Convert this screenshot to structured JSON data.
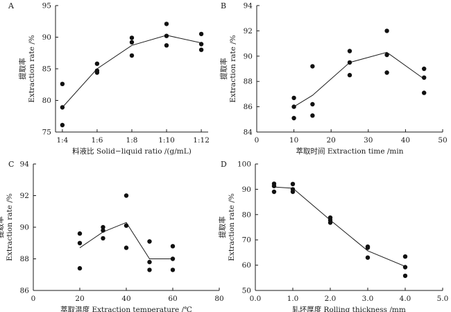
{
  "chart_data": [
    {
      "panel": "A",
      "type": "scatter",
      "xlabel": "料液比 Solid−liquid ratio /(g/mL)",
      "ylabel_cn": "提取率",
      "ylabel_en": "Extraction rate /%",
      "x_categories": [
        "1:4",
        "1:6",
        "1:8",
        "1:10",
        "1:12"
      ],
      "x_is_categorical": true,
      "ylim": [
        75,
        95
      ],
      "yticks": [
        75,
        80,
        85,
        90,
        95
      ],
      "points": [
        {
          "x": "1:4",
          "y": 82.6
        },
        {
          "x": "1:4",
          "y": 78.9
        },
        {
          "x": "1:4",
          "y": 76.1
        },
        {
          "x": "1:6",
          "y": 85.8
        },
        {
          "x": "1:6",
          "y": 84.7
        },
        {
          "x": "1:6",
          "y": 84.4
        },
        {
          "x": "1:8",
          "y": 89.9
        },
        {
          "x": "1:8",
          "y": 89.2
        },
        {
          "x": "1:8",
          "y": 87.1
        },
        {
          "x": "1:10",
          "y": 92.1
        },
        {
          "x": "1:10",
          "y": 90.2
        },
        {
          "x": "1:10",
          "y": 88.7
        },
        {
          "x": "1:12",
          "y": 90.5
        },
        {
          "x": "1:12",
          "y": 88.9
        },
        {
          "x": "1:12",
          "y": 88.0
        }
      ],
      "mean_line": [
        {
          "x": "1:4",
          "y": 78.9
        },
        {
          "x": "1:6",
          "y": 85.0
        },
        {
          "x": "1:8",
          "y": 88.7
        },
        {
          "x": "1:10",
          "y": 90.3
        },
        {
          "x": "1:12",
          "y": 89.1
        }
      ]
    },
    {
      "panel": "B",
      "type": "scatter",
      "xlabel": "萃取时间 Extraction time /min",
      "ylabel_cn": "提取率",
      "ylabel_en": "Extraction rate /%",
      "xlim": [
        0,
        50
      ],
      "xticks": [
        0,
        10,
        20,
        30,
        40,
        50
      ],
      "ylim": [
        84,
        94
      ],
      "yticks": [
        84,
        86,
        88,
        90,
        92,
        94
      ],
      "points": [
        {
          "x": 10,
          "y": 86.7
        },
        {
          "x": 10,
          "y": 86.0
        },
        {
          "x": 10,
          "y": 85.1
        },
        {
          "x": 15,
          "y": 89.2
        },
        {
          "x": 15,
          "y": 86.2
        },
        {
          "x": 15,
          "y": 85.3
        },
        {
          "x": 25,
          "y": 90.4
        },
        {
          "x": 25,
          "y": 89.5
        },
        {
          "x": 25,
          "y": 88.5
        },
        {
          "x": 35,
          "y": 92.0
        },
        {
          "x": 35,
          "y": 90.1
        },
        {
          "x": 35,
          "y": 88.7
        },
        {
          "x": 45,
          "y": 89.0
        },
        {
          "x": 45,
          "y": 88.3
        },
        {
          "x": 45,
          "y": 87.1
        }
      ],
      "mean_line": [
        {
          "x": 10,
          "y": 86.0
        },
        {
          "x": 15,
          "y": 86.9
        },
        {
          "x": 25,
          "y": 89.5
        },
        {
          "x": 35,
          "y": 90.3
        },
        {
          "x": 45,
          "y": 88.2
        }
      ]
    },
    {
      "panel": "C",
      "type": "scatter",
      "xlabel": "萃取温度 Extraction temperature /℃",
      "ylabel_cn": "提取率",
      "ylabel_en": "Extraction rate /%",
      "xlim": [
        0,
        80
      ],
      "xticks": [
        0,
        20,
        40,
        60,
        80
      ],
      "ylim": [
        86,
        94
      ],
      "yticks": [
        86,
        88,
        90,
        92,
        94
      ],
      "points": [
        {
          "x": 20,
          "y": 89.6
        },
        {
          "x": 20,
          "y": 89.0
        },
        {
          "x": 20,
          "y": 87.4
        },
        {
          "x": 30,
          "y": 90.0
        },
        {
          "x": 30,
          "y": 89.8
        },
        {
          "x": 30,
          "y": 89.3
        },
        {
          "x": 40,
          "y": 92.0
        },
        {
          "x": 40,
          "y": 90.1
        },
        {
          "x": 40,
          "y": 88.7
        },
        {
          "x": 50,
          "y": 89.1
        },
        {
          "x": 50,
          "y": 87.8
        },
        {
          "x": 50,
          "y": 87.3
        },
        {
          "x": 60,
          "y": 88.8
        },
        {
          "x": 60,
          "y": 88.0
        },
        {
          "x": 60,
          "y": 87.3
        }
      ],
      "mean_line": [
        {
          "x": 20,
          "y": 88.7
        },
        {
          "x": 30,
          "y": 89.7
        },
        {
          "x": 40,
          "y": 90.3
        },
        {
          "x": 50,
          "y": 88.0
        },
        {
          "x": 60,
          "y": 88.0
        }
      ]
    },
    {
      "panel": "D",
      "type": "scatter",
      "xlabel": "轧坯厚度 Rolling thickness /mm",
      "ylabel_cn": "提取率",
      "ylabel_en": "Extraction rate /%",
      "xlim": [
        0.0,
        5.0
      ],
      "xticks": [
        0.0,
        1.0,
        2.0,
        3.0,
        4.0,
        5.0
      ],
      "xtick_labels": [
        "0.0",
        "1.0",
        "2.0",
        "3.0",
        "4.0",
        "5.0"
      ],
      "ylim": [
        50,
        100
      ],
      "yticks": [
        50,
        60,
        70,
        80,
        90,
        100
      ],
      "points": [
        {
          "x": 0.5,
          "y": 92.2
        },
        {
          "x": 0.5,
          "y": 91.3
        },
        {
          "x": 0.5,
          "y": 89.0
        },
        {
          "x": 1.0,
          "y": 92.1
        },
        {
          "x": 1.0,
          "y": 90.0
        },
        {
          "x": 1.0,
          "y": 89.0
        },
        {
          "x": 2.0,
          "y": 78.8
        },
        {
          "x": 2.0,
          "y": 77.8
        },
        {
          "x": 2.0,
          "y": 76.8
        },
        {
          "x": 3.0,
          "y": 67.3
        },
        {
          "x": 3.0,
          "y": 66.9
        },
        {
          "x": 3.0,
          "y": 63.0
        },
        {
          "x": 4.0,
          "y": 63.4
        },
        {
          "x": 4.0,
          "y": 59.2
        },
        {
          "x": 4.0,
          "y": 55.8
        }
      ],
      "mean_line": [
        {
          "x": 0.5,
          "y": 90.9
        },
        {
          "x": 1.0,
          "y": 90.4
        },
        {
          "x": 2.0,
          "y": 77.8
        },
        {
          "x": 3.0,
          "y": 65.7
        },
        {
          "x": 4.0,
          "y": 59.5
        }
      ]
    }
  ]
}
